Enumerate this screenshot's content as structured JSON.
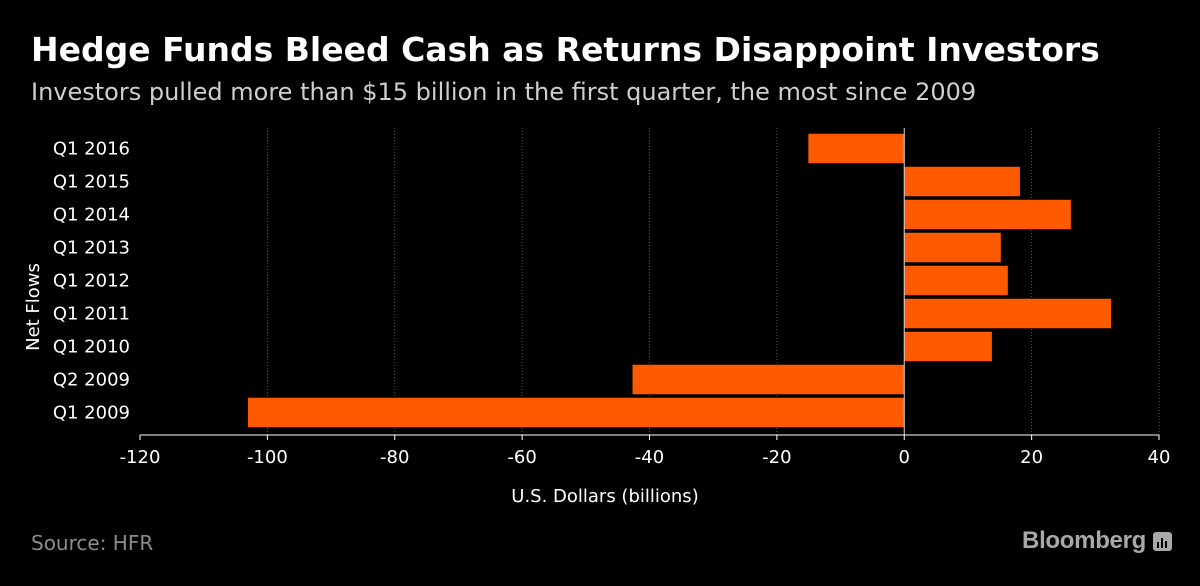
{
  "header": {
    "title": "Hedge Funds Bleed Cash as Returns Disappoint Investors",
    "subtitle": "Investors pulled more than $15 billion in the first quarter, the most since 2009"
  },
  "footer": {
    "source": "Source: HFR",
    "brand": "Bloomberg",
    "brand_icon": "bloomberg-terminal-icon"
  },
  "colors": {
    "background": "#000000",
    "bar": "#ff5a00",
    "grid": "#5a5a5a",
    "text": "#ffffff"
  },
  "chart_data": {
    "type": "bar",
    "orientation": "horizontal",
    "title": "",
    "xlabel": "U.S. Dollars (billions)",
    "ylabel": "Net Flows",
    "categories": [
      "Q1 2016",
      "Q1 2015",
      "Q1 2014",
      "Q1 2013",
      "Q1 2012",
      "Q1 2011",
      "Q1 2010",
      "Q2 2009",
      "Q1 2009"
    ],
    "values": [
      -15.1,
      18.2,
      26.2,
      15.2,
      16.3,
      32.5,
      13.8,
      -42.7,
      -103.1
    ],
    "xlim": [
      -120,
      40
    ],
    "xticks": [
      -120,
      -100,
      -80,
      -60,
      -40,
      -20,
      0,
      20,
      40
    ],
    "grid": true,
    "legend": "none"
  }
}
